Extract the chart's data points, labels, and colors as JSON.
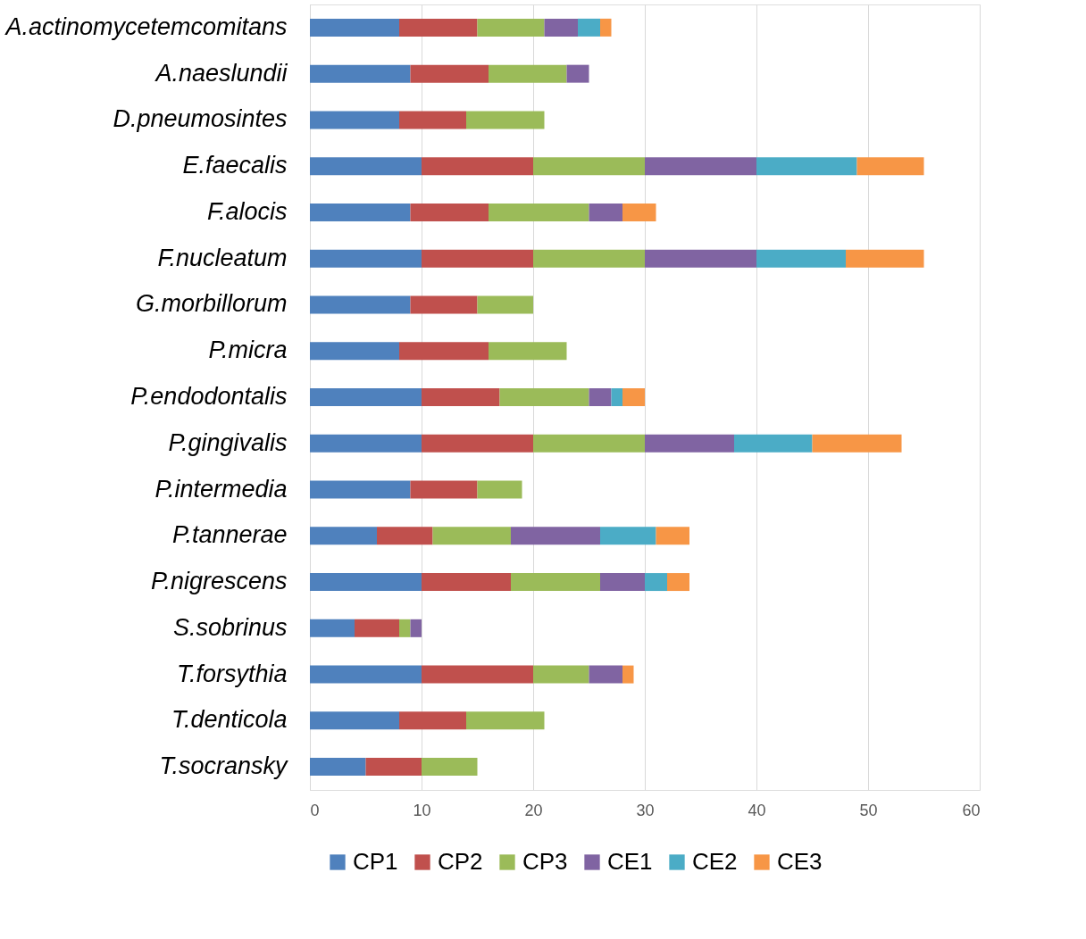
{
  "chart_data": {
    "type": "bar",
    "orientation": "horizontal",
    "stacked": true,
    "categories": [
      "A.actinomycetemcomitans",
      "A.naeslundii",
      "D.pneumosintes",
      "E.faecalis",
      "F.alocis",
      "F.nucleatum",
      "G.morbillorum",
      "P.micra",
      "P.endodontalis",
      "P.gingivalis",
      "P.intermedia",
      "P.tannerae",
      "P.nigrescens",
      "S.sobrinus",
      "T.forsythia",
      "T.denticola",
      "T.socransky"
    ],
    "series": [
      {
        "name": "CP1",
        "color": "#4f81bd",
        "values": [
          8,
          9,
          8,
          10,
          9,
          10,
          9,
          8,
          10,
          10,
          9,
          6,
          10,
          4,
          10,
          8,
          5
        ]
      },
      {
        "name": "CP2",
        "color": "#c0504d",
        "values": [
          7,
          7,
          6,
          10,
          7,
          10,
          6,
          8,
          7,
          10,
          6,
          5,
          8,
          4,
          10,
          6,
          5
        ]
      },
      {
        "name": "CP3",
        "color": "#9bbb59",
        "values": [
          6,
          7,
          7,
          10,
          9,
          10,
          5,
          7,
          8,
          10,
          4,
          7,
          8,
          1,
          5,
          7,
          5
        ]
      },
      {
        "name": "CE1",
        "color": "#8064a2",
        "values": [
          3,
          2,
          0,
          10,
          3,
          10,
          0,
          0,
          2,
          8,
          0,
          8,
          4,
          1,
          3,
          0,
          0
        ]
      },
      {
        "name": "CE2",
        "color": "#4bacc6",
        "values": [
          2,
          0,
          0,
          9,
          0,
          8,
          0,
          0,
          1,
          7,
          0,
          5,
          2,
          0,
          0,
          0,
          0
        ]
      },
      {
        "name": "CE3",
        "color": "#f79646",
        "values": [
          1,
          0,
          0,
          6,
          3,
          7,
          0,
          0,
          2,
          8,
          0,
          3,
          2,
          0,
          1,
          0,
          0
        ]
      }
    ],
    "xlim": [
      0,
      60
    ],
    "xticks": [
      0,
      10,
      20,
      30,
      40,
      50,
      60
    ],
    "grid": "x",
    "legend": "bottom"
  }
}
